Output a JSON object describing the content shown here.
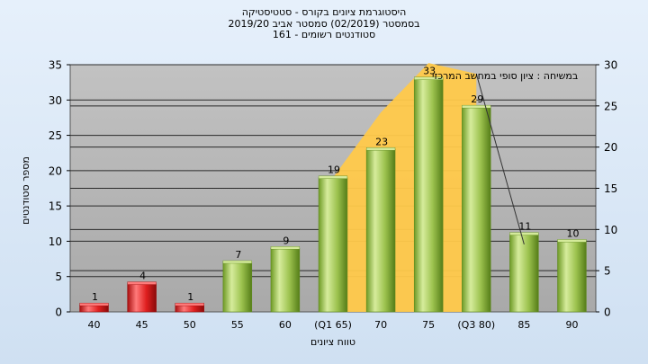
{
  "chart_data": {
    "type": "bar",
    "title_lines": [
      "היסטוגרמת ציונים בקורס - סטטיסטיקה",
      "בסמסטר  (02/2019)  סמסטר אביב 2019/20",
      "סטודנטים רשומים - 161"
    ],
    "annotation": "במשיחה : ציון סופי במחשב המרכזי",
    "xlabel": "טווח ציונים",
    "ylabel": "מספר סטודנטים",
    "categories": [
      "40",
      "45",
      "50",
      "55",
      "60",
      "(Q1 65)",
      "70",
      "75",
      "(Q3 80)",
      "85",
      "90"
    ],
    "values": [
      1,
      4,
      1,
      7,
      9,
      19,
      23,
      33,
      29,
      11,
      10
    ],
    "bar_colors": [
      "red",
      "red",
      "red",
      "green",
      "green",
      "green",
      "green",
      "green",
      "green",
      "green",
      "green"
    ],
    "left_axis": {
      "ylim": [
        0,
        35
      ],
      "ticks": [
        0,
        5,
        10,
        15,
        20,
        25,
        30,
        35
      ]
    },
    "right_axis": {
      "ylim": [
        0,
        30
      ],
      "ticks": [
        0,
        5,
        10,
        15,
        20,
        25,
        30
      ]
    },
    "area_series": {
      "category_start": 5,
      "category_end": 8,
      "values": [
        16.3,
        24.2,
        30.2,
        28.9
      ]
    },
    "line_series": {
      "category_start": 8,
      "category_end": 9,
      "values": [
        28.9,
        8.2
      ]
    },
    "grid": true,
    "colors": {
      "green_light": "#d4ea9a",
      "green_mid": "#9cc24e",
      "green_dark": "#5f8a1f",
      "red_light": "#ff7a7a",
      "red_mid": "#e02020",
      "red_dark": "#9a0c0c",
      "area": "#ffc94a",
      "plot_bg": "#b3b3b3",
      "page_bg": "#dde9f7"
    }
  }
}
